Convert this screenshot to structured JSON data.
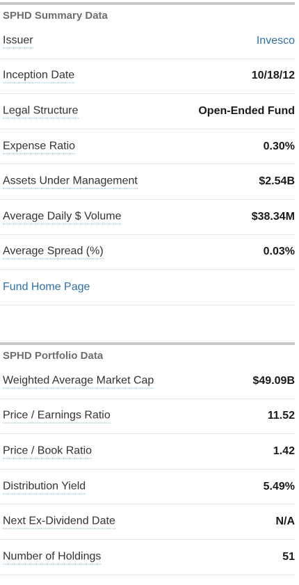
{
  "summary": {
    "title": "SPHD Summary Data",
    "rows": [
      {
        "label": "Issuer",
        "value": "Invesco"
      },
      {
        "label": "Inception Date",
        "value": "10/18/12"
      },
      {
        "label": "Legal Structure",
        "value": "Open-Ended Fund"
      },
      {
        "label": "Expense Ratio",
        "value": "0.30%"
      },
      {
        "label": "Assets Under Management",
        "value": "$2.54B"
      },
      {
        "label": "Average Daily $ Volume",
        "value": "$38.34M"
      },
      {
        "label": "Average Spread (%)",
        "value": "0.03%"
      }
    ],
    "fund_home_link": "Fund Home Page"
  },
  "portfolio": {
    "title": "SPHD Portfolio Data",
    "rows": [
      {
        "label": "Weighted Average Market Cap",
        "value": "$49.09B"
      },
      {
        "label": "Price / Earnings Ratio",
        "value": "11.52"
      },
      {
        "label": "Price / Book Ratio",
        "value": "1.42"
      },
      {
        "label": "Distribution Yield",
        "value": "5.49%"
      },
      {
        "label": "Next Ex-Dividend Date",
        "value": "N/A"
      },
      {
        "label": "Number of Holdings",
        "value": "51"
      }
    ]
  },
  "colors": {
    "link": "#2f6fb0",
    "title": "#6e6e6e",
    "rule": "#c9c9c9",
    "dotted_underline": "#7ab3d9"
  }
}
